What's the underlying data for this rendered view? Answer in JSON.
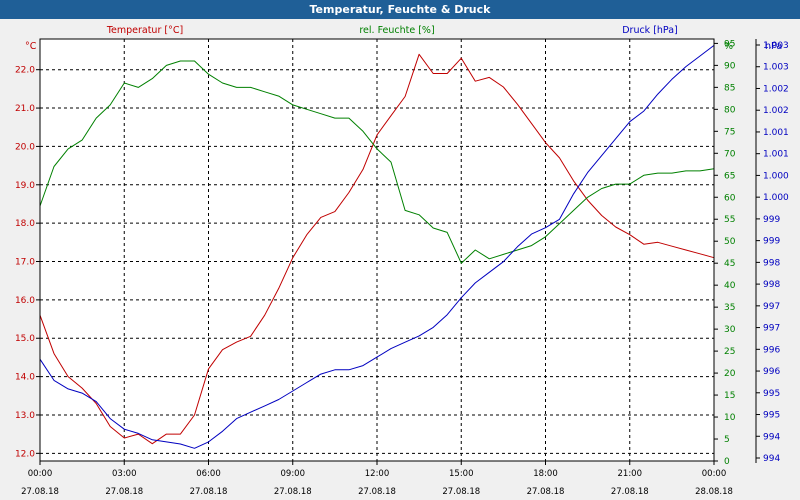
{
  "window": {
    "title": "Temperatur, Feuchte & Druck"
  },
  "chart_data": {
    "type": "line",
    "title": "Temperatur, Feuchte & Druck",
    "x_ticks": [
      {
        "time": "00:00",
        "date": "27.08.18"
      },
      {
        "time": "03:00",
        "date": "27.08.18"
      },
      {
        "time": "06:00",
        "date": "27.08.18"
      },
      {
        "time": "09:00",
        "date": "27.08.18"
      },
      {
        "time": "12:00",
        "date": "27.08.18"
      },
      {
        "time": "15:00",
        "date": "27.08.18"
      },
      {
        "time": "18:00",
        "date": "27.08.18"
      },
      {
        "time": "21:00",
        "date": "27.08.18"
      },
      {
        "time": "00:00",
        "date": "28.08.18"
      }
    ],
    "grid": true,
    "axes": {
      "temperature": {
        "label": "Temperatur [°C]",
        "unit": "°C",
        "side": "left",
        "color": "#c00000",
        "range": [
          11.8,
          22.8
        ],
        "ticks": [
          "12.0",
          "13.0",
          "14.0",
          "15.0",
          "16.0",
          "17.0",
          "18.0",
          "19.0",
          "20.0",
          "21.0",
          "22.0"
        ]
      },
      "humidity": {
        "label": "rel. Feuchte [%]",
        "unit": "%",
        "side": "right",
        "color": "#008000",
        "range": [
          0,
          96
        ],
        "ticks": [
          "0",
          "5",
          "10",
          "15",
          "20",
          "25",
          "30",
          "35",
          "40",
          "45",
          "50",
          "55",
          "60",
          "65",
          "70",
          "75",
          "80",
          "85",
          "90",
          "95"
        ]
      },
      "pressure": {
        "label": "Druck [hPa]",
        "unit": "hPa",
        "side": "right",
        "color": "#0000c0",
        "range": [
          993.9,
          1003.85
        ],
        "ticks": [
          "994",
          "994",
          "995",
          "995",
          "996",
          "996",
          "997",
          "997",
          "998",
          "998",
          "999",
          "999",
          "1.000",
          "1.000",
          "1.001",
          "1.001",
          "1.002",
          "1.002",
          "1.003",
          "1.003"
        ]
      }
    },
    "series": [
      {
        "name": "Temperatur [°C]",
        "axis": "temperature",
        "color": "#c00000",
        "x_hours": [
          0,
          0.5,
          1,
          1.5,
          2,
          2.5,
          3,
          3.5,
          4,
          4.5,
          5,
          5.5,
          6,
          6.5,
          7,
          7.5,
          8,
          8.5,
          9,
          9.5,
          10,
          10.5,
          11,
          11.5,
          12,
          12.5,
          13,
          13.5,
          14,
          14.5,
          15,
          15.5,
          16,
          16.5,
          17,
          17.5,
          18,
          18.5,
          19,
          19.5,
          20,
          20.5,
          21,
          21.5,
          22,
          22.5,
          23,
          23.5,
          24
        ],
        "values": [
          15.6,
          14.6,
          14.0,
          13.7,
          13.3,
          12.7,
          12.4,
          12.5,
          12.25,
          12.5,
          12.5,
          13.0,
          14.2,
          14.7,
          14.9,
          15.05,
          15.6,
          16.3,
          17.1,
          17.7,
          18.15,
          18.3,
          18.8,
          19.4,
          20.3,
          20.8,
          21.3,
          22.4,
          21.9,
          21.9,
          22.3,
          21.7,
          21.8,
          21.55,
          21.1,
          20.6,
          20.1,
          19.7,
          19.1,
          18.6,
          18.2,
          17.9,
          17.7,
          17.45,
          17.5,
          17.4,
          17.3,
          17.2,
          17.1
        ]
      },
      {
        "name": "rel. Feuchte [%]",
        "axis": "humidity",
        "color": "#008000",
        "x_hours": [
          0,
          0.5,
          1,
          1.5,
          2,
          2.5,
          3,
          3.5,
          4,
          4.5,
          5,
          5.5,
          6,
          6.5,
          7,
          7.5,
          8,
          8.5,
          9,
          9.5,
          10,
          10.5,
          11,
          11.5,
          12,
          12.5,
          13,
          13.5,
          14,
          14.5,
          15,
          15.5,
          16,
          16.5,
          17,
          17.5,
          18,
          18.5,
          19,
          19.5,
          20,
          20.5,
          21,
          21.5,
          22,
          22.5,
          23,
          23.5,
          24
        ],
        "values": [
          58,
          67,
          71,
          73,
          78,
          81,
          86,
          85,
          87,
          90,
          91,
          91,
          88,
          86,
          85,
          85,
          84,
          83,
          81,
          80,
          79,
          78,
          78,
          75,
          71,
          68,
          57,
          56,
          53,
          52,
          45,
          48,
          46,
          47,
          48,
          49,
          51,
          54,
          57,
          60,
          62,
          63,
          63,
          65,
          65.5,
          65.5,
          66,
          66,
          66.5
        ]
      },
      {
        "name": "Druck [hPa]",
        "axis": "pressure",
        "color": "#0000c0",
        "x_hours": [
          0,
          0.5,
          1,
          1.5,
          2,
          2.5,
          3,
          3.5,
          4,
          4.5,
          5,
          5.5,
          6,
          6.5,
          7,
          7.5,
          8,
          8.5,
          9,
          9.5,
          10,
          10.5,
          11,
          11.5,
          12,
          12.5,
          13,
          13.5,
          14,
          14.5,
          15,
          15.5,
          16,
          16.5,
          17,
          17.5,
          18,
          18.5,
          19,
          19.5,
          20,
          20.5,
          21,
          21.5,
          22,
          22.5,
          23,
          23.5,
          24
        ],
        "values": [
          996.3,
          995.8,
          995.6,
          995.5,
          995.3,
          994.9,
          994.65,
          994.55,
          994.4,
          994.35,
          994.3,
          994.2,
          994.35,
          994.6,
          994.9,
          995.05,
          995.2,
          995.35,
          995.55,
          995.75,
          995.95,
          996.05,
          996.05,
          996.15,
          996.35,
          996.55,
          996.7,
          996.85,
          997.05,
          997.35,
          997.75,
          998.1,
          998.35,
          998.6,
          998.95,
          999.25,
          999.4,
          999.6,
          1000.2,
          1000.7,
          1001.1,
          1001.5,
          1001.9,
          1002.15,
          1002.55,
          1002.9,
          1003.2,
          1003.45,
          1003.7
        ]
      }
    ]
  }
}
